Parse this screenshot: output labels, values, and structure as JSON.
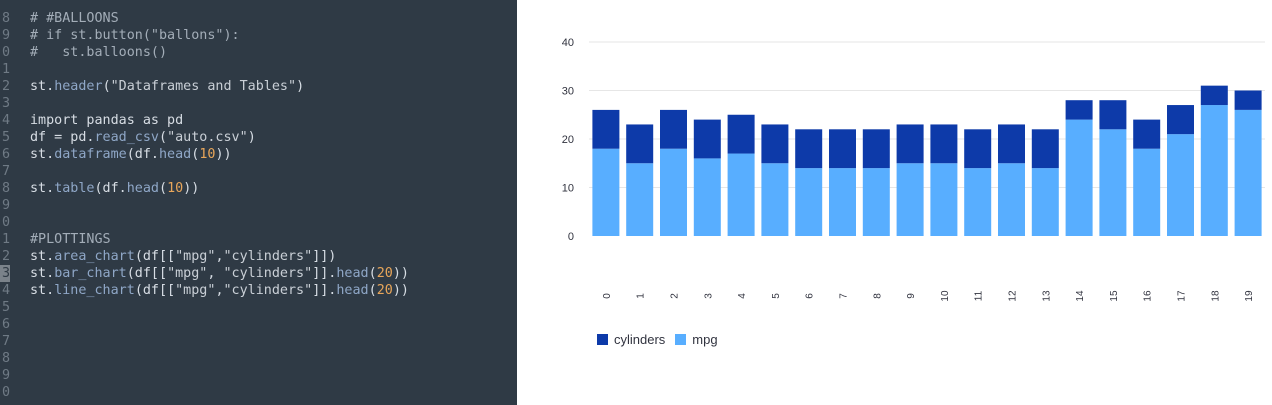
{
  "editor": {
    "lines": [
      {
        "num": "8",
        "tokens": [
          {
            "t": "# #BALLOONS",
            "c": "comment"
          }
        ]
      },
      {
        "num": "9",
        "tokens": [
          {
            "t": "# if st.button(\"ballons\"):",
            "c": "comment"
          }
        ]
      },
      {
        "num": "0",
        "tokens": [
          {
            "t": "#   st.balloons()",
            "c": "comment"
          }
        ]
      },
      {
        "num": "1",
        "tokens": []
      },
      {
        "num": "2",
        "tokens": [
          {
            "t": "st.",
            "c": "kw"
          },
          {
            "t": "header",
            "c": "fn"
          },
          {
            "t": "(",
            "c": "kw"
          },
          {
            "t": "\"Dataframes and Tables\"",
            "c": "str"
          },
          {
            "t": ")",
            "c": "kw"
          }
        ]
      },
      {
        "num": "3",
        "tokens": []
      },
      {
        "num": "4",
        "tokens": [
          {
            "t": "import pandas as pd",
            "c": "kw"
          }
        ]
      },
      {
        "num": "5",
        "tokens": [
          {
            "t": "df = pd.",
            "c": "kw"
          },
          {
            "t": "read_csv",
            "c": "fn"
          },
          {
            "t": "(",
            "c": "kw"
          },
          {
            "t": "\"auto.csv\"",
            "c": "str"
          },
          {
            "t": ")",
            "c": "kw"
          }
        ]
      },
      {
        "num": "6",
        "tokens": [
          {
            "t": "st.",
            "c": "kw"
          },
          {
            "t": "dataframe",
            "c": "fn"
          },
          {
            "t": "(df.",
            "c": "kw"
          },
          {
            "t": "head",
            "c": "fn"
          },
          {
            "t": "(",
            "c": "kw"
          },
          {
            "t": "10",
            "c": "num"
          },
          {
            "t": "))",
            "c": "kw"
          }
        ]
      },
      {
        "num": "7",
        "tokens": []
      },
      {
        "num": "8",
        "tokens": [
          {
            "t": "st.",
            "c": "kw"
          },
          {
            "t": "table",
            "c": "fn"
          },
          {
            "t": "(df.",
            "c": "kw"
          },
          {
            "t": "head",
            "c": "fn"
          },
          {
            "t": "(",
            "c": "kw"
          },
          {
            "t": "10",
            "c": "num"
          },
          {
            "t": "))",
            "c": "kw"
          }
        ]
      },
      {
        "num": "9",
        "tokens": []
      },
      {
        "num": "0",
        "tokens": []
      },
      {
        "num": "1",
        "tokens": [
          {
            "t": "#PLOTTINGS",
            "c": "comment"
          }
        ]
      },
      {
        "num": "2",
        "tokens": [
          {
            "t": "st.",
            "c": "kw"
          },
          {
            "t": "area_chart",
            "c": "fn"
          },
          {
            "t": "(df[[",
            "c": "kw"
          },
          {
            "t": "\"mpg\"",
            "c": "str"
          },
          {
            "t": ",",
            "c": "kw"
          },
          {
            "t": "\"cylinders\"",
            "c": "str"
          },
          {
            "t": "]])",
            "c": "kw"
          }
        ]
      },
      {
        "num": "3",
        "active": true,
        "tokens": [
          {
            "t": "st.",
            "c": "kw"
          },
          {
            "t": "bar_chart",
            "c": "fn"
          },
          {
            "t": "(df[[",
            "c": "kw"
          },
          {
            "t": "\"mpg\"",
            "c": "str"
          },
          {
            "t": ", ",
            "c": "kw"
          },
          {
            "t": "\"cylinders\"",
            "c": "str"
          },
          {
            "t": "]].",
            "c": "kw"
          },
          {
            "t": "head",
            "c": "fn"
          },
          {
            "t": "(",
            "c": "kw"
          },
          {
            "t": "20",
            "c": "num"
          },
          {
            "t": "))",
            "c": "kw"
          }
        ]
      },
      {
        "num": "4",
        "tokens": [
          {
            "t": "st.",
            "c": "kw"
          },
          {
            "t": "line_chart",
            "c": "fn"
          },
          {
            "t": "(df[[",
            "c": "kw"
          },
          {
            "t": "\"mpg\"",
            "c": "str"
          },
          {
            "t": ",",
            "c": "kw"
          },
          {
            "t": "\"cylinders\"",
            "c": "str"
          },
          {
            "t": "]].",
            "c": "kw"
          },
          {
            "t": "head",
            "c": "fn"
          },
          {
            "t": "(",
            "c": "kw"
          },
          {
            "t": "20",
            "c": "num"
          },
          {
            "t": "))",
            "c": "kw"
          }
        ]
      },
      {
        "num": "5",
        "tokens": []
      },
      {
        "num": "6",
        "tokens": []
      },
      {
        "num": "7",
        "tokens": []
      },
      {
        "num": "8",
        "tokens": []
      },
      {
        "num": "9",
        "tokens": []
      },
      {
        "num": "0",
        "tokens": []
      }
    ]
  },
  "chart_data": {
    "type": "bar",
    "stacked": true,
    "categories": [
      "0",
      "1",
      "2",
      "3",
      "4",
      "5",
      "6",
      "7",
      "8",
      "9",
      "10",
      "11",
      "12",
      "13",
      "14",
      "15",
      "16",
      "17",
      "18",
      "19"
    ],
    "series": [
      {
        "name": "mpg",
        "color": "#58aeff",
        "values": [
          18,
          15,
          18,
          16,
          17,
          15,
          14,
          14,
          14,
          15,
          15,
          14,
          15,
          14,
          24,
          22,
          18,
          21,
          27,
          26
        ]
      },
      {
        "name": "cylinders",
        "color": "#0d3aa9",
        "values": [
          8,
          8,
          8,
          8,
          8,
          8,
          8,
          8,
          8,
          8,
          8,
          8,
          8,
          8,
          4,
          6,
          6,
          6,
          4,
          4
        ]
      }
    ],
    "yticks": [
      0,
      10,
      20,
      30,
      40
    ],
    "ylim": [
      0,
      40
    ],
    "grid": true,
    "legend": {
      "position": "bottom-left",
      "entries": [
        "cylinders",
        "mpg"
      ]
    }
  }
}
